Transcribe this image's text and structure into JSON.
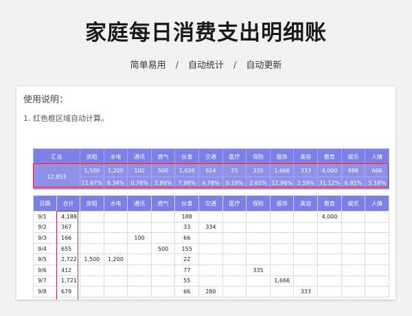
{
  "header": {
    "title": "家庭每日消费支出明细账",
    "tags": [
      "简单易用",
      "自动统计",
      "自动更新"
    ],
    "separator": "/"
  },
  "card": {
    "title": "使用说明：",
    "note": "1. 红色框区域自动计算。"
  },
  "categories": [
    "房租",
    "水电",
    "通讯",
    "燃气",
    "伙食",
    "交通",
    "医疗",
    "保险",
    "服饰",
    "美容",
    "教育",
    "娱乐",
    "人情"
  ],
  "summary": {
    "label": "汇总",
    "total": "12,853",
    "amounts": [
      "1,500",
      "1,200",
      "100",
      "500",
      "1,026",
      "614",
      "25",
      "335",
      "1,666",
      "333",
      "4,000",
      "888",
      "666"
    ],
    "percents": [
      "11.67%",
      "9.34%",
      "0.78%",
      "3.89%",
      "7.98%",
      "4.78%",
      "0.19%",
      "2.61%",
      "12.96%",
      "2.59%",
      "31.12%",
      "6.91%",
      "5.18%"
    ]
  },
  "detail": {
    "date_header": "日期",
    "total_header": "合计",
    "rows": [
      {
        "date": "9/1",
        "total": "4,188",
        "values": [
          "",
          "",
          "",
          "",
          "188",
          "",
          "",
          "",
          "",
          "",
          "4,000",
          "",
          ""
        ]
      },
      {
        "date": "9/2",
        "total": "367",
        "values": [
          "",
          "",
          "",
          "",
          "33",
          "334",
          "",
          "",
          "",
          "",
          "",
          "",
          ""
        ]
      },
      {
        "date": "9/3",
        "total": "166",
        "values": [
          "",
          "",
          "100",
          "",
          "66",
          "",
          "",
          "",
          "",
          "",
          "",
          "",
          ""
        ]
      },
      {
        "date": "9/4",
        "total": "655",
        "values": [
          "",
          "",
          "",
          "500",
          "155",
          "",
          "",
          "",
          "",
          "",
          "",
          "",
          ""
        ]
      },
      {
        "date": "9/5",
        "total": "2,722",
        "values": [
          "1,500",
          "1,200",
          "",
          "",
          "22",
          "",
          "",
          "",
          "",
          "",
          "",
          "",
          ""
        ]
      },
      {
        "date": "9/6",
        "total": "412",
        "values": [
          "",
          "",
          "",
          "",
          "77",
          "",
          "",
          "335",
          "",
          "",
          "",
          "",
          ""
        ]
      },
      {
        "date": "9/7",
        "total": "1,721",
        "values": [
          "",
          "",
          "",
          "",
          "55",
          "",
          "",
          "",
          "1,666",
          "",
          "",
          "",
          ""
        ]
      },
      {
        "date": "9/8",
        "total": "679",
        "values": [
          "",
          "",
          "",
          "",
          "66",
          "280",
          "",
          "",
          "",
          "333",
          "",
          "",
          ""
        ]
      }
    ]
  }
}
